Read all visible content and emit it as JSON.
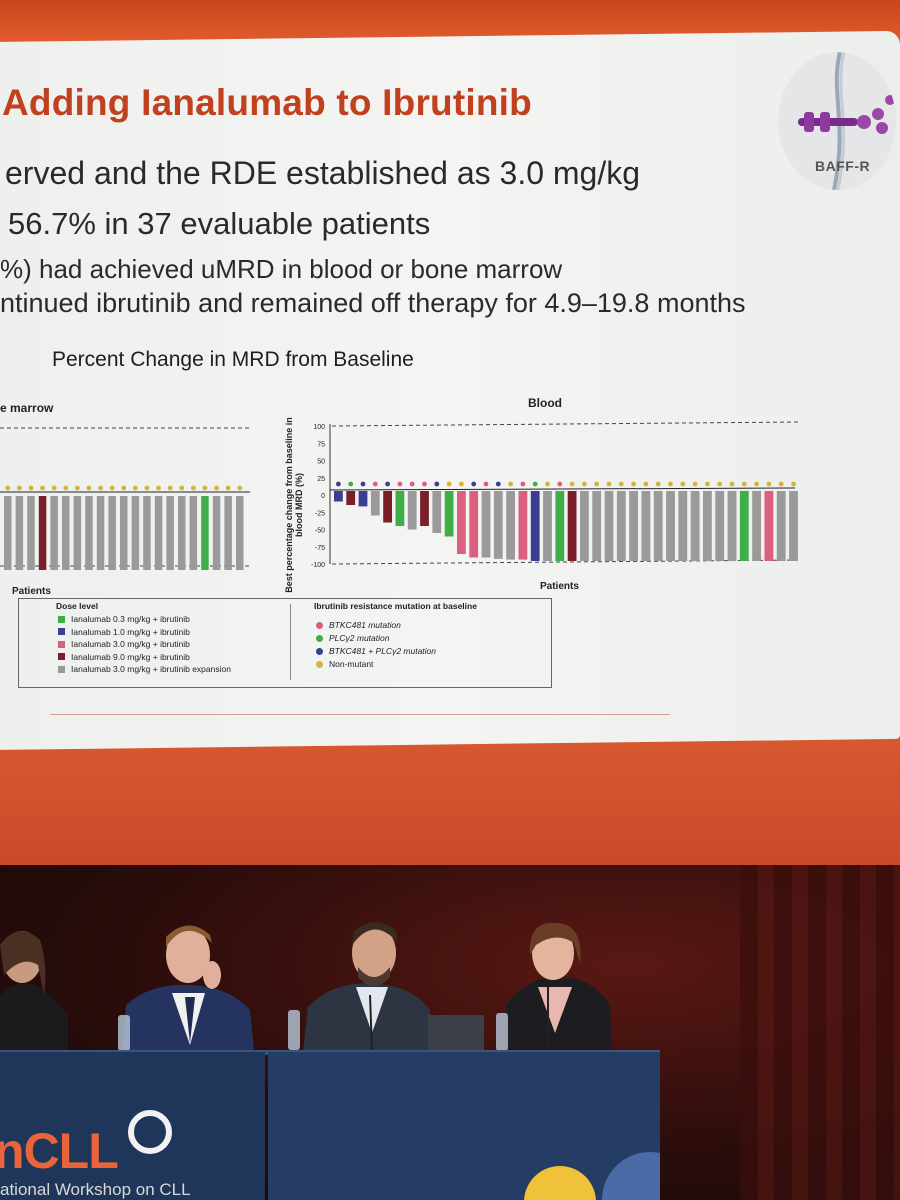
{
  "slide": {
    "title": "Adding Ianalumab to Ibrutinib",
    "bullets": [
      "erved and the RDE established as 3.0 mg/kg",
      "56.7% in 37 evaluable patients",
      "%) had achieved uMRD in blood or bone marrow",
      "ntinued ibrutinib and remained off therapy for 4.9–19.8 months"
    ],
    "chart_heading": "Percent Change in MRD from Baseline",
    "logo_text": "BAFF-R"
  },
  "chart_data": [
    {
      "type": "bar",
      "title": "e marrow",
      "xlabel": "Patients",
      "ylim": [
        -100,
        100
      ],
      "values": [
        -100,
        -100,
        -100,
        -100,
        -100,
        -100,
        -100,
        -100,
        -100,
        -100,
        -100,
        -100,
        -100,
        -100,
        -100,
        -100,
        -100,
        -100,
        -100,
        -100,
        -100
      ],
      "bar_colors": [
        "#9a9a9a",
        "#9a9a9a",
        "#9a9a9a",
        "#7a1f2a",
        "#9a9a9a",
        "#9a9a9a",
        "#9a9a9a",
        "#9a9a9a",
        "#9a9a9a",
        "#9a9a9a",
        "#9a9a9a",
        "#9a9a9a",
        "#9a9a9a",
        "#9a9a9a",
        "#9a9a9a",
        "#9a9a9a",
        "#9a9a9a",
        "#3fae49",
        "#9a9a9a",
        "#9a9a9a",
        "#9a9a9a"
      ]
    },
    {
      "type": "bar",
      "title": "Blood",
      "xlabel": "Patients",
      "ylabel": "Best percentage change from baseline in blood MRD (%)",
      "ylim": [
        -100,
        100
      ],
      "yticks": [
        "100",
        "75",
        "50",
        "25",
        "0",
        "-25",
        "-50",
        "-75",
        "-100"
      ],
      "values": [
        -15,
        -20,
        -22,
        -35,
        -45,
        -50,
        -55,
        -50,
        -60,
        -65,
        -90,
        -95,
        -95,
        -97,
        -98,
        -98,
        -100,
        -100,
        -100,
        -100,
        -100,
        -100,
        -100,
        -100,
        -100,
        -100,
        -100,
        -100,
        -100,
        -100,
        -100,
        -100,
        -100,
        -100,
        -100,
        -100,
        -100,
        -100
      ],
      "bar_colors": [
        "#3a3f8f",
        "#7a1f2a",
        "#3a3f8f",
        "#9a9a9a",
        "#7a1f2a",
        "#3fae49",
        "#9a9a9a",
        "#7a1f2a",
        "#9a9a9a",
        "#3fae49",
        "#d9607f",
        "#d9607f",
        "#9a9a9a",
        "#9a9a9a",
        "#9a9a9a",
        "#d9607f",
        "#3a3f8f",
        "#9a9a9a",
        "#3fae49",
        "#7a1f2a",
        "#9a9a9a",
        "#9a9a9a",
        "#9a9a9a",
        "#9a9a9a",
        "#9a9a9a",
        "#9a9a9a",
        "#9a9a9a",
        "#9a9a9a",
        "#9a9a9a",
        "#9a9a9a",
        "#9a9a9a",
        "#9a9a9a",
        "#9a9a9a",
        "#3fae49",
        "#9a9a9a",
        "#d9607f",
        "#9a9a9a",
        "#9a9a9a"
      ],
      "dot_colors": [
        "#3a3f8f",
        "#3fae49",
        "#3a3f8f",
        "#d9607f",
        "#3a3f8f",
        "#d9607f",
        "#d9607f",
        "#d9607f",
        "#3a3f8f",
        "#d5b43a",
        "#d5b43a",
        "#3a3f8f",
        "#d9607f",
        "#3a3f8f",
        "#d5b43a",
        "#d9607f",
        "#3fae49",
        "#d5b43a",
        "#d9607f",
        "#d5b43a",
        "#d5b43a",
        "#d5b43a",
        "#d5b43a",
        "#d5b43a",
        "#d5b43a",
        "#d5b43a",
        "#d5b43a",
        "#d5b43a",
        "#d5b43a",
        "#d5b43a",
        "#d5b43a",
        "#d5b43a",
        "#d5b43a",
        "#d5b43a",
        "#d5b43a",
        "#d5b43a",
        "#d5b43a",
        "#d5b43a"
      ]
    }
  ],
  "legend": {
    "dose_title": "Dose level",
    "dose_items": [
      {
        "label": "Ianalumab 0.3 mg/kg + ibrutinib",
        "color": "#3fae49"
      },
      {
        "label": "Ianalumab 1.0 mg/kg + ibrutinib",
        "color": "#3a3f8f"
      },
      {
        "label": "Ianalumab 3.0 mg/kg + ibrutinib",
        "color": "#d9607f"
      },
      {
        "label": "Ianalumab 9.0 mg/kg + ibrutinib",
        "color": "#7a1f2a"
      },
      {
        "label": "Ianalumab 3.0 mg/kg + ibrutinib expansion",
        "color": "#9a9a9a"
      }
    ],
    "mutation_title": "Ibrutinib resistance mutation at baseline",
    "mutation_items": [
      {
        "label": "BTKC481 mutation",
        "color": "#d9607f"
      },
      {
        "label": "PLCγ2 mutation",
        "color": "#3fae49"
      },
      {
        "label": "BTKC481 + PLCγ2 mutation",
        "color": "#3a3f8f"
      },
      {
        "label": "Non-mutant",
        "color": "#d5b43a"
      }
    ]
  },
  "banner": {
    "logo": "nCLL",
    "subtitle": "ational Workshop on CLL"
  }
}
